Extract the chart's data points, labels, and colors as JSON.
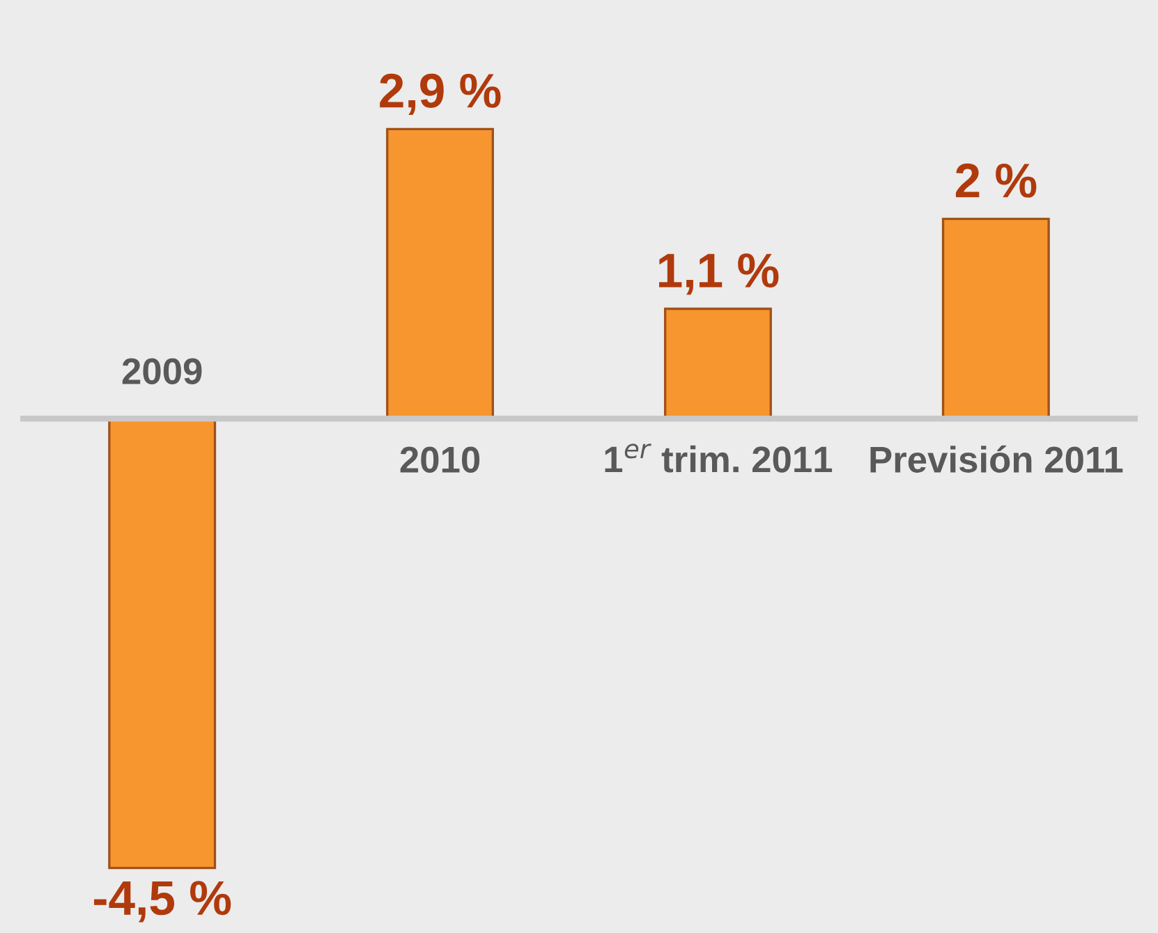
{
  "chart_data": {
    "type": "bar",
    "categories": [
      "2009",
      "2010",
      "1$^{er}$ trim. 2011",
      "Previsión 2011"
    ],
    "values": [
      -4.5,
      2.9,
      1.1,
      2
    ],
    "value_labels": [
      "-4,5 %",
      "2,9 %",
      "1,1 %",
      "2 %"
    ],
    "color": "#f7962f",
    "grid": false,
    "legend": false
  }
}
